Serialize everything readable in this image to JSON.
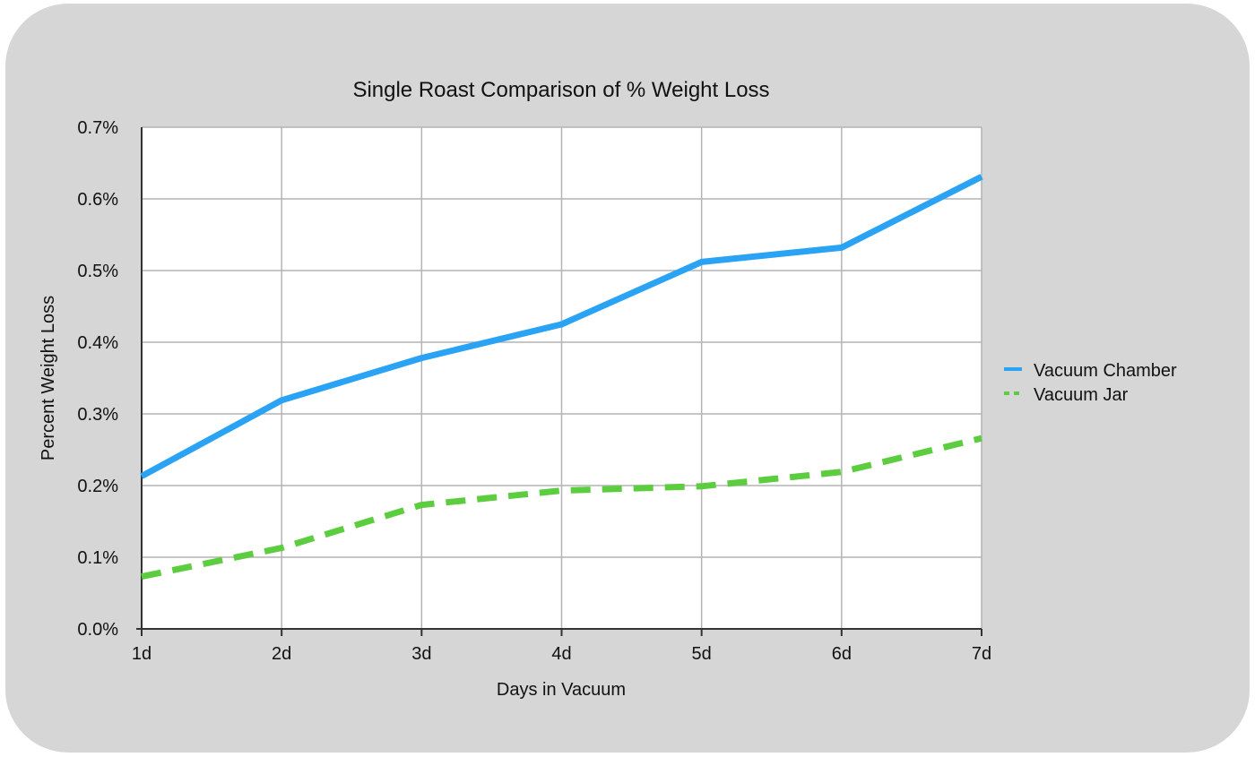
{
  "chart_data": {
    "type": "line",
    "title": "Single Roast Comparison of % Weight Loss",
    "xlabel": "Days in Vacuum",
    "ylabel": "Percent Weight Loss",
    "categories": [
      "1d",
      "2d",
      "3d",
      "4d",
      "5d",
      "6d",
      "7d"
    ],
    "ylim": [
      0,
      0.7
    ],
    "y_ticks": [
      0.0,
      0.1,
      0.2,
      0.3,
      0.4,
      0.5,
      0.6,
      0.7
    ],
    "y_tick_labels": [
      "0.0%",
      "0.1%",
      "0.2%",
      "0.3%",
      "0.4%",
      "0.5%",
      "0.6%",
      "0.7%"
    ],
    "grid": true,
    "legend_position": "right",
    "series": [
      {
        "name": "Vacuum Chamber",
        "values": [
          0.213,
          0.319,
          0.378,
          0.425,
          0.512,
          0.532,
          0.631
        ],
        "color": "#2aa3f5",
        "style": "solid"
      },
      {
        "name": "Vacuum Jar",
        "values": [
          0.073,
          0.113,
          0.173,
          0.193,
          0.199,
          0.219,
          0.266
        ],
        "color": "#5ccd3f",
        "style": "dashed"
      }
    ]
  }
}
